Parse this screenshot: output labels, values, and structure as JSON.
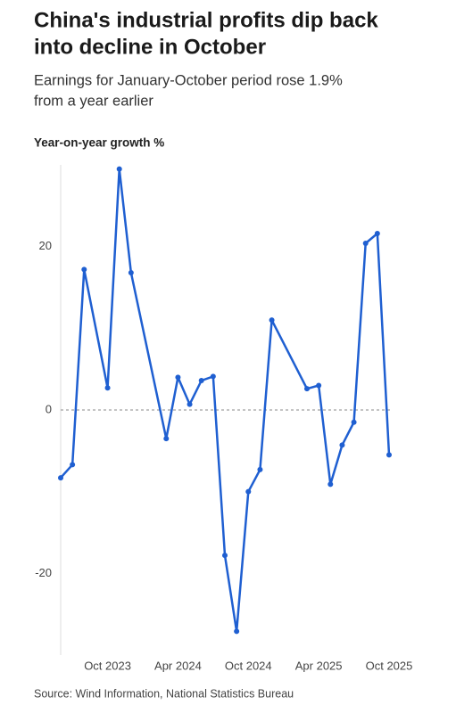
{
  "chart_data": {
    "type": "line",
    "title": [
      "China's industrial profits dip back",
      "into decline in October"
    ],
    "subtitle": [
      "Earnings for January-October period rose 1.9%",
      "from a year earlier"
    ],
    "y_label": "Year-on-year growth %",
    "source": "Source: Wind Information, National Statistics Bureau",
    "x": [
      "2023-06",
      "2023-07",
      "2023-08",
      "2023-10",
      "2023-11",
      "2023-12",
      "2024-03",
      "2024-04",
      "2024-05",
      "2024-06",
      "2024-07",
      "2024-08",
      "2024-09",
      "2024-10",
      "2024-11",
      "2024-12",
      "2025-03",
      "2025-04",
      "2025-05",
      "2025-06",
      "2025-07",
      "2025-08",
      "2025-09",
      "2025-10"
    ],
    "series": [
      {
        "name": "Industrial profits",
        "color": "#1f5fd1",
        "values": [
          -8.3,
          -6.7,
          17.2,
          2.7,
          29.5,
          16.8,
          -3.5,
          4.0,
          0.7,
          3.6,
          4.1,
          -17.8,
          -27.1,
          -10.0,
          -7.3,
          11.0,
          2.6,
          3.0,
          -9.1,
          -4.3,
          -1.5,
          20.4,
          21.6,
          -5.5
        ]
      }
    ],
    "xlim": [
      "2023-06",
      "2025-10"
    ],
    "xticks": [
      {
        "value": "2023-10",
        "label": "Oct 2023"
      },
      {
        "value": "2024-04",
        "label": "Apr 2024"
      },
      {
        "value": "2024-10",
        "label": "Oct 2024"
      },
      {
        "value": "2025-04",
        "label": "Apr 2025"
      },
      {
        "value": "2025-10",
        "label": "Oct 2025"
      }
    ],
    "ylim": [
      -30,
      30
    ],
    "yticks": [
      -20,
      0,
      20
    ]
  }
}
